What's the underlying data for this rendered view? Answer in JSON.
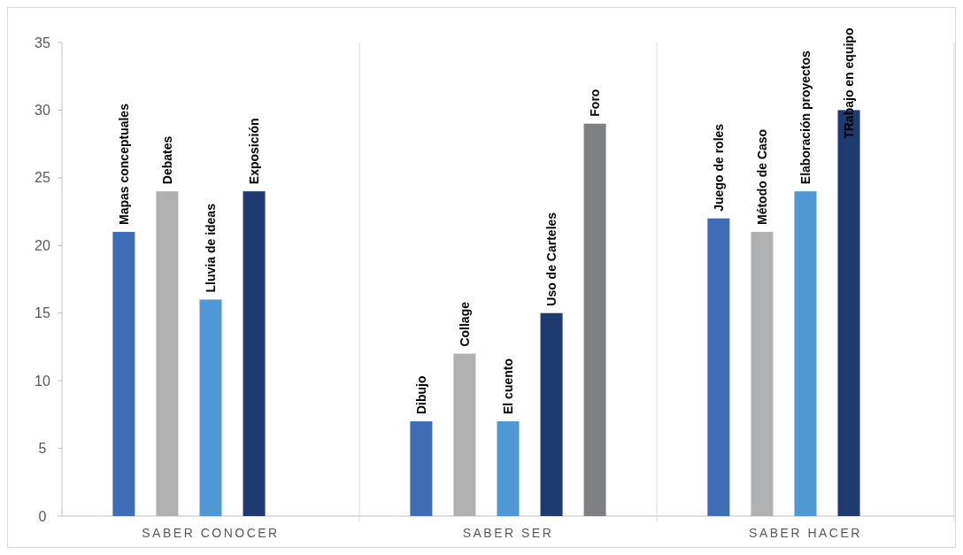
{
  "chart_data": {
    "type": "bar",
    "categories": [
      "SABER CONOCER",
      "SABER SER",
      "SABER HACER"
    ],
    "series": [
      {
        "color": "#3f6db5",
        "values": [
          21,
          7,
          22
        ]
      },
      {
        "color": "#b0b1b3",
        "values": [
          24,
          12,
          21
        ]
      },
      {
        "color": "#4f98d5",
        "values": [
          16,
          7,
          24
        ]
      },
      {
        "color": "#1f3a6e",
        "values": [
          24,
          15,
          30
        ]
      },
      {
        "color": "#7f8083",
        "values": [
          null,
          29,
          null
        ]
      }
    ],
    "ylim": [
      0,
      35
    ],
    "yticks": [
      0,
      5,
      10,
      15,
      20,
      25,
      30,
      35
    ],
    "grid": false,
    "annotations": [
      "Mapas conceptuales",
      "Debates",
      "Lluvia de ideas",
      "Exposición",
      "Dibujo",
      "Collage",
      "El cuento",
      "Uso de Carteles",
      "Foro",
      "Juego de roles",
      "Método de Caso",
      "Elaboración proyectos",
      "TRabajo en equipo"
    ]
  }
}
